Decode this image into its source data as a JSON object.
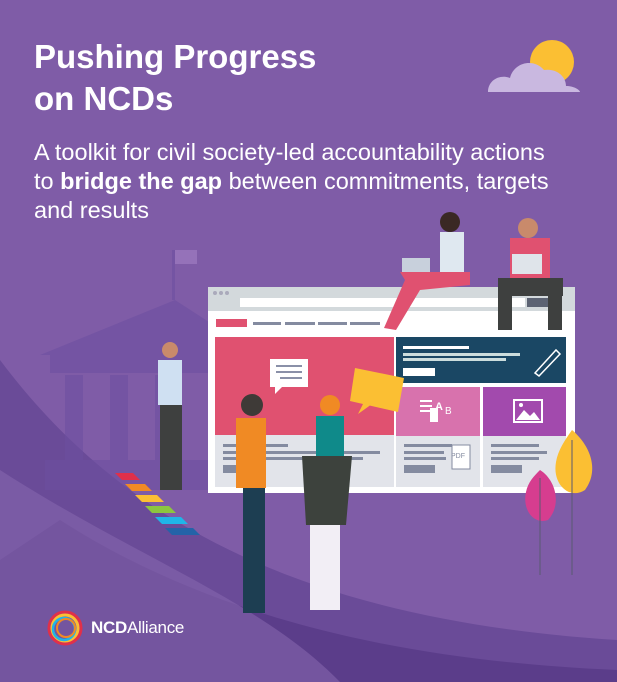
{
  "cover": {
    "title_line1": "Pushing Progress",
    "title_line2": "on NCDs",
    "subtitle_before": "A toolkit for civil society-led accountability actions to ",
    "subtitle_bold": "bridge the gap",
    "subtitle_after": " between commitments, targets and results"
  },
  "logo": {
    "bold": "NCD",
    "regular": "Alliance"
  },
  "illustration": {
    "icons": [
      "cloud-sun-icon",
      "speech-bubble-icon",
      "pen-icon",
      "translate-icon",
      "image-icon",
      "pdf-download-icon",
      "leaf-icon"
    ],
    "colors": {
      "background": "#7f5ca7",
      "dark_curve": "#5b3d8a",
      "pink": "#e05170",
      "navy": "#1a4764",
      "tile_pink": "#d872ad",
      "tile_purple": "#a24aad",
      "yellow": "#fbbf33"
    }
  }
}
